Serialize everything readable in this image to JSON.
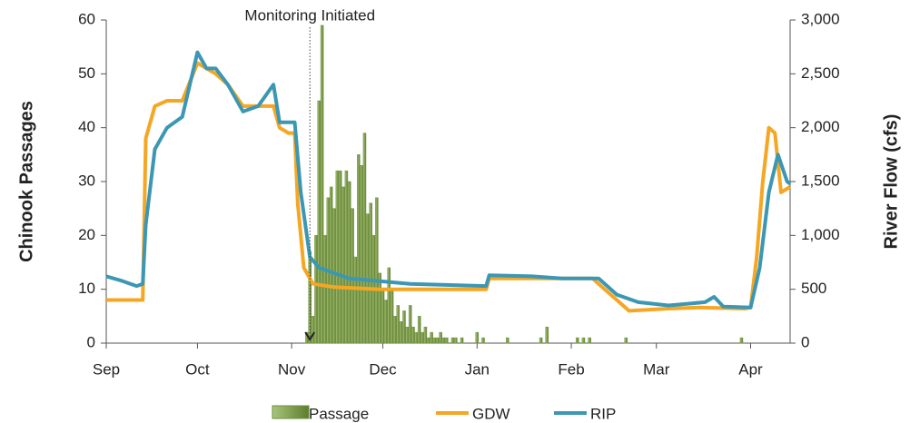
{
  "chart_data": {
    "type": "bar-line",
    "annotation": {
      "text": "Monitoring Initiated",
      "x": 67
    },
    "y_label": "Chinook Passages",
    "y2_label": "River Flow (cfs)",
    "xlim": [
      0,
      225
    ],
    "xticks": [
      {
        "value": 0,
        "label": "Sep"
      },
      {
        "value": 30,
        "label": "Oct"
      },
      {
        "value": 61,
        "label": "Nov"
      },
      {
        "value": 91,
        "label": "Dec"
      },
      {
        "value": 122,
        "label": "Jan"
      },
      {
        "value": 153,
        "label": "Feb"
      },
      {
        "value": 181,
        "label": "Mar"
      },
      {
        "value": 212,
        "label": "Apr"
      }
    ],
    "ylim": [
      0,
      60
    ],
    "yticks": [
      0,
      10,
      20,
      30,
      40,
      50,
      60
    ],
    "y2lim": [
      0,
      3000
    ],
    "y2ticks": [
      0,
      500,
      {
        "value": 1000,
        "label": "1,000"
      },
      {
        "value": 1500,
        "label": "1,500"
      },
      {
        "value": 2000,
        "label": "2,000"
      },
      {
        "value": 2500,
        "label": "2,500"
      },
      {
        "value": 3000,
        "label": "3,000"
      }
    ],
    "series": [
      {
        "name": "Passage",
        "type": "bar",
        "color": "#6f8f3c",
        "x": [
          66,
          67,
          68,
          69,
          70,
          71,
          72,
          73,
          74,
          75,
          76,
          77,
          78,
          79,
          80,
          81,
          82,
          83,
          84,
          85,
          86,
          87,
          88,
          89,
          90,
          91,
          92,
          93,
          94,
          95,
          96,
          97,
          98,
          99,
          100,
          101,
          102,
          103,
          104,
          105,
          106,
          107,
          108,
          109,
          110,
          111,
          112,
          114,
          115,
          117,
          122,
          124,
          132,
          143,
          145,
          155,
          157,
          159,
          171,
          209
        ],
        "values": [
          2,
          17,
          5,
          20,
          45,
          59,
          20,
          27,
          29,
          25,
          32,
          32,
          29,
          32,
          30,
          25,
          16,
          35,
          33,
          39,
          24,
          26,
          20,
          27,
          13,
          10,
          8,
          14,
          10,
          5,
          7,
          4,
          6,
          3,
          7,
          3,
          2,
          5,
          2,
          3,
          1,
          2,
          1,
          1,
          2,
          1,
          1,
          1,
          1,
          1,
          2,
          1,
          1,
          1,
          3,
          1,
          1,
          1,
          1,
          1
        ]
      },
      {
        "name": "GDW",
        "type": "line",
        "axis": "y2",
        "color": "#f5a623",
        "x": [
          0,
          12,
          13,
          16,
          20,
          25,
          30,
          33,
          36,
          40,
          45,
          50,
          55,
          57,
          60,
          62,
          63,
          65,
          68,
          75,
          90,
          110,
          125,
          126,
          140,
          150,
          160,
          164,
          168,
          172,
          185,
          195,
          210,
          212,
          214,
          216,
          218,
          220,
          222,
          225
        ],
        "values": [
          400,
          400,
          1900,
          2200,
          2250,
          2250,
          2600,
          2550,
          2500,
          2400,
          2200,
          2200,
          2200,
          2000,
          1950,
          1950,
          1300,
          700,
          550,
          520,
          500,
          500,
          500,
          600,
          600,
          600,
          600,
          500,
          400,
          300,
          320,
          330,
          320,
          330,
          800,
          1500,
          2000,
          1950,
          1400,
          1450
        ]
      },
      {
        "name": "RIP",
        "type": "line",
        "axis": "y2",
        "color": "#3b97b3",
        "x": [
          0,
          5,
          10,
          12,
          13,
          16,
          20,
          25,
          30,
          33,
          36,
          40,
          45,
          50,
          55,
          57,
          62,
          64,
          67,
          70,
          80,
          100,
          125,
          126,
          140,
          150,
          162,
          168,
          175,
          185,
          197,
          200,
          203,
          212,
          215,
          218,
          221,
          224,
          225
        ],
        "values": [
          620,
          580,
          530,
          550,
          1100,
          1800,
          2000,
          2100,
          2700,
          2550,
          2550,
          2400,
          2150,
          2200,
          2400,
          2050,
          2050,
          1400,
          800,
          700,
          600,
          550,
          530,
          630,
          620,
          600,
          600,
          450,
          380,
          350,
          380,
          430,
          340,
          330,
          700,
          1400,
          1750,
          1500,
          1480
        ]
      }
    ]
  }
}
